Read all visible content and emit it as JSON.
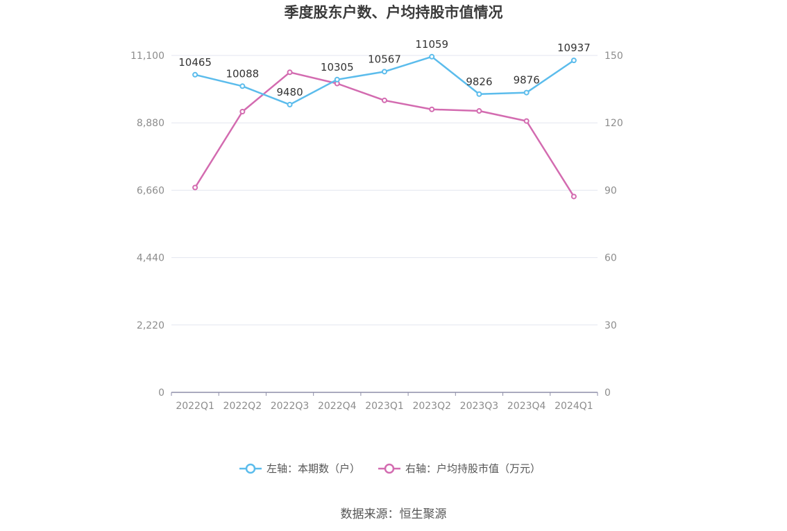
{
  "chart_data": {
    "type": "line",
    "title": "季度股东户数、户均持股市值情况",
    "categories": [
      "2022Q1",
      "2022Q2",
      "2022Q3",
      "2022Q4",
      "2023Q1",
      "2023Q2",
      "2023Q3",
      "2023Q4",
      "2024Q1"
    ],
    "series": [
      {
        "name": "左轴：本期数（户）",
        "axis": "left",
        "color": "#5bbcec",
        "values": [
          10465,
          10088,
          9480,
          10305,
          10567,
          11059,
          9826,
          9876,
          10937
        ],
        "labels": [
          "10465",
          "10088",
          "9480",
          "10305",
          "10567",
          "11059",
          "9826",
          "9876",
          "10937"
        ]
      },
      {
        "name": "右轴：户均持股市值（万元）",
        "axis": "right",
        "color": "#d36bb0",
        "values": [
          91.2,
          125.0,
          142.5,
          137.5,
          130.0,
          126.0,
          125.3,
          120.8,
          87.2
        ]
      }
    ],
    "left_axis": {
      "ylim": [
        0,
        11100
      ],
      "ticks": [
        "0",
        "2,220",
        "4,440",
        "6,660",
        "8,880",
        "11,100"
      ]
    },
    "right_axis": {
      "ylim": [
        0,
        150
      ],
      "ticks": [
        "0",
        "30",
        "60",
        "90",
        "120",
        "150"
      ]
    },
    "grid": true,
    "legend_position": "bottom"
  },
  "source": "数据来源：恒生聚源",
  "colors": {
    "grid": "#e3e6ef",
    "axis": "#8e8ea8"
  }
}
